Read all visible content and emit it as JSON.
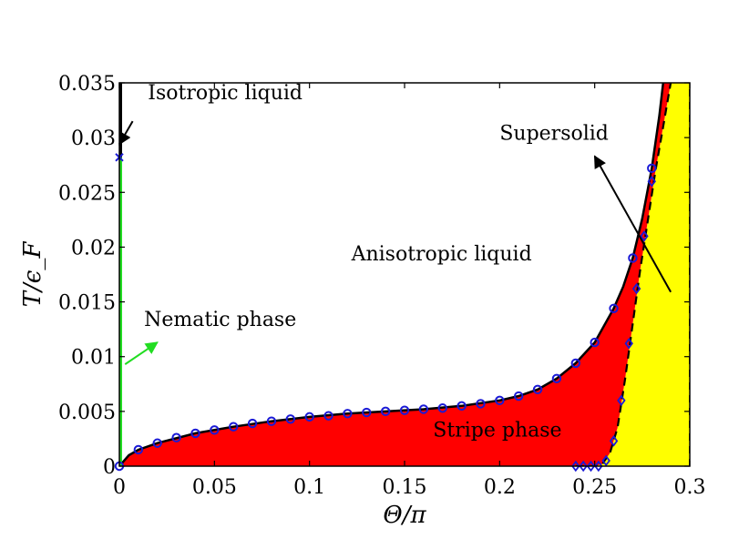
{
  "chart_data": {
    "type": "area",
    "xlabel": "Θ/π",
    "ylabel": "T/ϵ_F",
    "xlim": [
      0,
      0.3
    ],
    "ylim": [
      0,
      0.035
    ],
    "xticks": [
      "0",
      "0.05",
      "0.1",
      "0.15",
      "0.2",
      "0.25",
      "0.3"
    ],
    "yticks": [
      "0",
      "0.005",
      "0.01",
      "0.015",
      "0.02",
      "0.025",
      "0.03",
      "0.035"
    ],
    "colors": {
      "stripe": "#ff0000",
      "supersolid": "#ffff00",
      "nematic": "#22dd22",
      "isotropic": "#000000",
      "markers": "#1a1ad6",
      "boundary": "#000000"
    },
    "series": [
      {
        "name": "circles",
        "marker": "circle",
        "x": [
          0.0,
          0.01,
          0.02,
          0.03,
          0.04,
          0.05,
          0.06,
          0.07,
          0.08,
          0.09,
          0.1,
          0.11,
          0.12,
          0.13,
          0.14,
          0.15,
          0.16,
          0.17,
          0.18,
          0.19,
          0.2,
          0.21,
          0.22,
          0.23,
          0.24,
          0.25,
          0.26,
          0.27,
          0.28
        ],
        "y": [
          0.0,
          0.0015,
          0.0021,
          0.0026,
          0.003,
          0.0033,
          0.0036,
          0.0039,
          0.0041,
          0.0043,
          0.0045,
          0.0046,
          0.0048,
          0.0049,
          0.005,
          0.0051,
          0.0052,
          0.0053,
          0.0055,
          0.0057,
          0.006,
          0.0064,
          0.007,
          0.008,
          0.0094,
          0.0113,
          0.0144,
          0.019,
          0.0272
        ]
      },
      {
        "name": "diamonds",
        "marker": "diamond",
        "x": [
          0.24,
          0.244,
          0.248,
          0.252,
          0.256,
          0.26,
          0.264,
          0.268,
          0.272,
          0.276,
          0.28
        ],
        "y": [
          0.0,
          0.0,
          0.0,
          0.0,
          0.0005,
          0.0023,
          0.006,
          0.0112,
          0.0162,
          0.021,
          0.026
        ]
      },
      {
        "name": "nematic-point",
        "marker": "cross",
        "x": [
          0.0
        ],
        "y": [
          0.0282
        ]
      }
    ],
    "lines": {
      "upper_boundary": {
        "x": [
          0.0,
          0.005,
          0.01,
          0.02,
          0.04,
          0.06,
          0.08,
          0.1,
          0.12,
          0.14,
          0.16,
          0.18,
          0.2,
          0.21,
          0.22,
          0.23,
          0.24,
          0.25,
          0.26,
          0.265,
          0.27,
          0.275,
          0.28,
          0.284,
          0.286
        ],
        "y": [
          0.0,
          0.001,
          0.0015,
          0.0021,
          0.003,
          0.0036,
          0.0041,
          0.0045,
          0.0048,
          0.005,
          0.0052,
          0.0055,
          0.006,
          0.0064,
          0.007,
          0.008,
          0.0094,
          0.0113,
          0.0144,
          0.0164,
          0.019,
          0.0226,
          0.0272,
          0.032,
          0.035
        ]
      },
      "lower_boundary": {
        "x": [
          0.24,
          0.25,
          0.254,
          0.258,
          0.262,
          0.266,
          0.27,
          0.274,
          0.278,
          0.282,
          0.286,
          0.29
        ],
        "y": [
          0.0,
          0.0,
          0.0002,
          0.0012,
          0.0035,
          0.008,
          0.013,
          0.018,
          0.0225,
          0.027,
          0.031,
          0.035
        ]
      },
      "right_edge": {
        "x": [
          0.3,
          0.3
        ],
        "y": [
          0.0,
          0.035
        ]
      },
      "nematic_line": {
        "x": [
          0.0,
          0.0
        ],
        "y": [
          0.0,
          0.0282
        ]
      },
      "isotropic_line": {
        "x": [
          0.0,
          0.0
        ],
        "y": [
          0.0282,
          0.035
        ]
      }
    },
    "annotations": [
      {
        "text": "Isotropic liquid",
        "x": 0.015,
        "y": 0.0335,
        "arrow_to": [
          0.0,
          0.0294
        ],
        "arrow_from": [
          0.007,
          0.0315
        ],
        "arrow_color": "#000000"
      },
      {
        "text": "Nematic phase",
        "x": 0.013,
        "y": 0.0128,
        "arrow_to": [
          0.02,
          0.0113
        ],
        "arrow_from": [
          0.003,
          0.0093
        ],
        "arrow_color": "#22dd22"
      },
      {
        "text": "Supersolid",
        "x": 0.2,
        "y": 0.0298,
        "arrow_to": [
          0.25,
          0.0283
        ],
        "arrow_from": [
          0.29,
          0.0159
        ],
        "arrow_color": "#000000"
      },
      {
        "text": "Anisotropic liquid",
        "x": 0.122,
        "y": 0.0188
      },
      {
        "text": "Stripe phase",
        "x": 0.165,
        "y": 0.0027
      }
    ]
  }
}
